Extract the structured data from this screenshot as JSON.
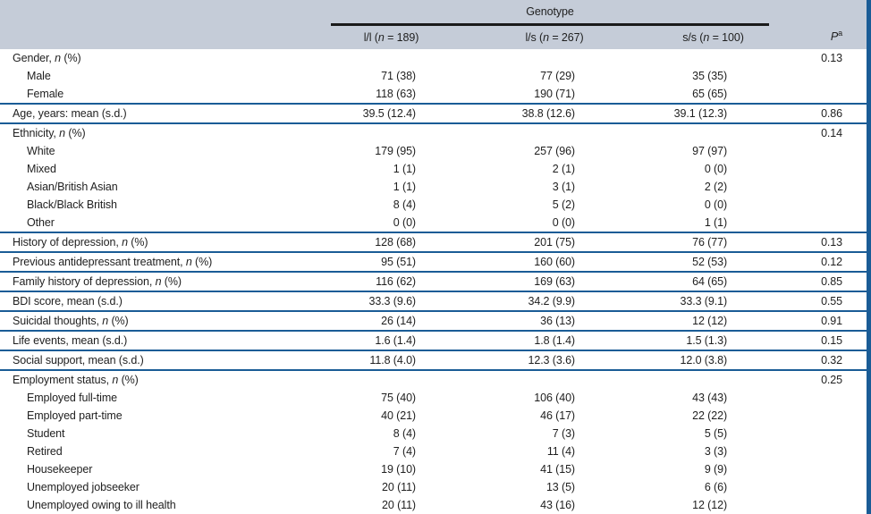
{
  "header": {
    "group_label": "Genotype",
    "columns": [
      "l/l (*n* = 189)",
      "l/s (*n* = 267)",
      "s/s (*n* = 100)"
    ],
    "p_label": "*P*^a"
  },
  "table": {
    "sections": [
      {
        "rows": [
          {
            "label": "Gender, *n* (%)",
            "indent": 0,
            "values": [
              "",
              "",
              ""
            ],
            "p": "0.13"
          },
          {
            "label": "Male",
            "indent": 1,
            "values": [
              "71 (38)",
              "77 (29)",
              "35 (35)"
            ],
            "p": ""
          },
          {
            "label": "Female",
            "indent": 1,
            "values": [
              "118 (63)",
              "190 (71)",
              "65 (65)"
            ],
            "p": ""
          }
        ]
      },
      {
        "rows": [
          {
            "label": "Age, years: mean (s.d.)",
            "indent": 0,
            "values": [
              "39.5 (12.4)",
              "38.8 (12.6)",
              "39.1 (12.3)"
            ],
            "p": "0.86"
          }
        ]
      },
      {
        "rows": [
          {
            "label": "Ethnicity, *n* (%)",
            "indent": 0,
            "values": [
              "",
              "",
              ""
            ],
            "p": "0.14"
          },
          {
            "label": "White",
            "indent": 1,
            "values": [
              "179 (95)",
              "257 (96)",
              "97 (97)"
            ],
            "p": ""
          },
          {
            "label": "Mixed",
            "indent": 1,
            "values": [
              "1 (1)",
              "2 (1)",
              "0 (0)"
            ],
            "p": ""
          },
          {
            "label": "Asian/British Asian",
            "indent": 1,
            "values": [
              "1 (1)",
              "3 (1)",
              "2 (2)"
            ],
            "p": ""
          },
          {
            "label": "Black/Black British",
            "indent": 1,
            "values": [
              "8 (4)",
              "5 (2)",
              "0 (0)"
            ],
            "p": ""
          },
          {
            "label": "Other",
            "indent": 1,
            "values": [
              "0 (0)",
              "0 (0)",
              "1 (1)"
            ],
            "p": ""
          }
        ]
      },
      {
        "rows": [
          {
            "label": "History of depression, *n* (%)",
            "indent": 0,
            "values": [
              "128 (68)",
              "201 (75)",
              "76 (77)"
            ],
            "p": "0.13"
          }
        ]
      },
      {
        "rows": [
          {
            "label": "Previous antidepressant treatment, *n* (%)",
            "indent": 0,
            "values": [
              "95 (51)",
              "160 (60)",
              "52 (53)"
            ],
            "p": "0.12"
          }
        ]
      },
      {
        "rows": [
          {
            "label": "Family history of depression, *n* (%)",
            "indent": 0,
            "values": [
              "116 (62)",
              "169 (63)",
              "64 (65)"
            ],
            "p": "0.85"
          }
        ]
      },
      {
        "rows": [
          {
            "label": "BDI score, mean (s.d.)",
            "indent": 0,
            "values": [
              "33.3 (9.6)",
              "34.2 (9.9)",
              "33.3 (9.1)"
            ],
            "p": "0.55"
          }
        ]
      },
      {
        "rows": [
          {
            "label": "Suicidal thoughts, *n* (%)",
            "indent": 0,
            "values": [
              "26 (14)",
              "36 (13)",
              "12 (12)"
            ],
            "p": "0.91"
          }
        ]
      },
      {
        "rows": [
          {
            "label": "Life events, mean (s.d.)",
            "indent": 0,
            "values": [
              "1.6 (1.4)",
              "1.8 (1.4)",
              "1.5 (1.3)"
            ],
            "p": "0.15"
          }
        ]
      },
      {
        "rows": [
          {
            "label": "Social support, mean (s.d.)",
            "indent": 0,
            "values": [
              "11.8 (4.0)",
              "12.3 (3.6)",
              "12.0 (3.8)"
            ],
            "p": "0.32"
          }
        ]
      },
      {
        "rows": [
          {
            "label": "Employment status, *n* (%)",
            "indent": 0,
            "values": [
              "",
              "",
              ""
            ],
            "p": "0.25"
          },
          {
            "label": "Employed full-time",
            "indent": 1,
            "values": [
              "75 (40)",
              "106 (40)",
              "43 (43)"
            ],
            "p": ""
          },
          {
            "label": "Employed part-time",
            "indent": 1,
            "values": [
              "40 (21)",
              "46 (17)",
              "22 (22)"
            ],
            "p": ""
          },
          {
            "label": "Student",
            "indent": 1,
            "values": [
              "8 (4)",
              "7 (3)",
              "5 (5)"
            ],
            "p": ""
          },
          {
            "label": "Retired",
            "indent": 1,
            "values": [
              "7 (4)",
              "11 (4)",
              "3 (3)"
            ],
            "p": ""
          },
          {
            "label": "Housekeeper",
            "indent": 1,
            "values": [
              "19 (10)",
              "41 (15)",
              "9 (9)"
            ],
            "p": ""
          },
          {
            "label": "Unemployed jobseeker",
            "indent": 1,
            "values": [
              "20 (11)",
              "13 (5)",
              "6 (6)"
            ],
            "p": ""
          },
          {
            "label": "Unemployed owing to ill health",
            "indent": 1,
            "values": [
              "20 (11)",
              "43 (16)",
              "12 (12)"
            ],
            "p": ""
          }
        ]
      }
    ]
  },
  "colors": {
    "header_bg": "#c5ccd8",
    "divider_blue": "#1a5c96",
    "rule_black": "#1a1a1a",
    "text": "#1f1f1f",
    "bottom_rule": "#7e95ad"
  }
}
